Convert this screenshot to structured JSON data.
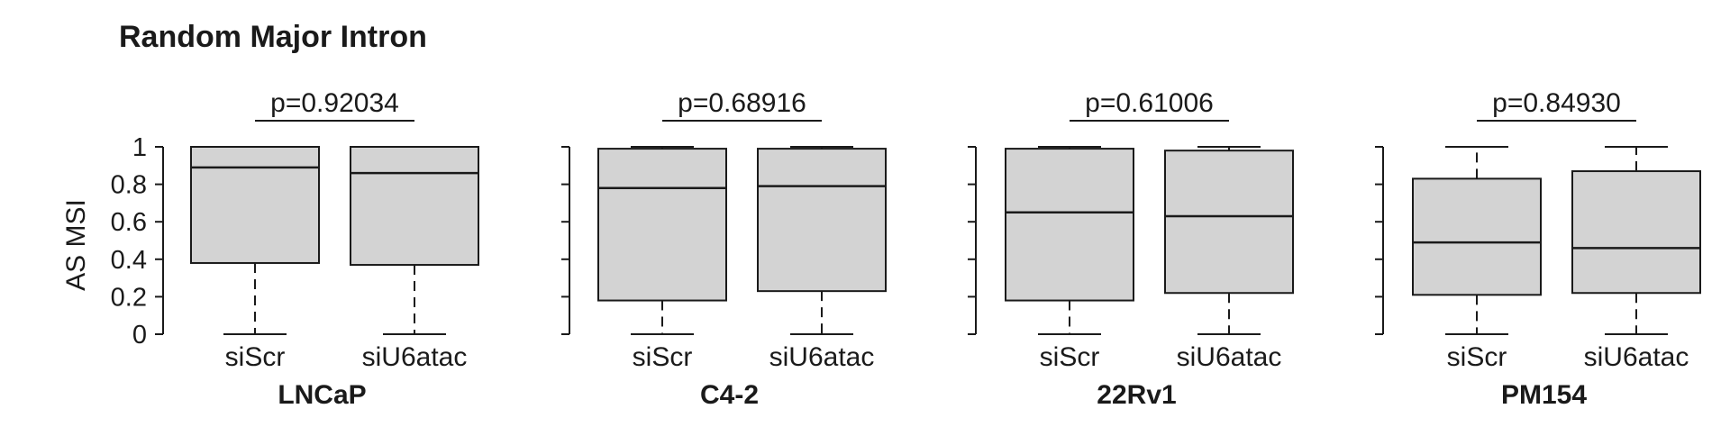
{
  "title": "Random Major Intron",
  "chart_data": {
    "type": "boxplot",
    "title": "Random Major Intron",
    "ylabel": "AS MSI",
    "ylim": [
      0,
      1
    ],
    "yticks": [
      "0",
      "0.2",
      "0.4",
      "0.6",
      "0.8",
      "1"
    ],
    "categories": [
      "siScr",
      "siU6atac"
    ],
    "box_color": "#d3d3d3",
    "line_color": "#1a1a1a",
    "panels": [
      {
        "name": "LNCaP",
        "pvalue": "p=0.92034",
        "boxes": [
          {
            "category": "siScr",
            "min": 0,
            "q1": 0.38,
            "median": 0.89,
            "q3": 1.0,
            "max": 1.0
          },
          {
            "category": "siU6atac",
            "min": 0,
            "q1": 0.37,
            "median": 0.86,
            "q3": 1.0,
            "max": 1.0
          }
        ]
      },
      {
        "name": "C4-2",
        "pvalue": "p=0.68916",
        "boxes": [
          {
            "category": "siScr",
            "min": 0,
            "q1": 0.18,
            "median": 0.78,
            "q3": 0.99,
            "max": 1.0
          },
          {
            "category": "siU6atac",
            "min": 0,
            "q1": 0.23,
            "median": 0.79,
            "q3": 0.99,
            "max": 1.0
          }
        ]
      },
      {
        "name": "22Rv1",
        "pvalue": "p=0.61006",
        "boxes": [
          {
            "category": "siScr",
            "min": 0,
            "q1": 0.18,
            "median": 0.65,
            "q3": 0.99,
            "max": 1.0
          },
          {
            "category": "siU6atac",
            "min": 0,
            "q1": 0.22,
            "median": 0.63,
            "q3": 0.98,
            "max": 1.0
          }
        ]
      },
      {
        "name": "PM154",
        "pvalue": "p=0.84930",
        "boxes": [
          {
            "category": "siScr",
            "min": 0,
            "q1": 0.21,
            "median": 0.49,
            "q3": 0.83,
            "max": 1.0
          },
          {
            "category": "siU6atac",
            "min": 0,
            "q1": 0.22,
            "median": 0.46,
            "q3": 0.87,
            "max": 1.0
          }
        ]
      }
    ]
  }
}
